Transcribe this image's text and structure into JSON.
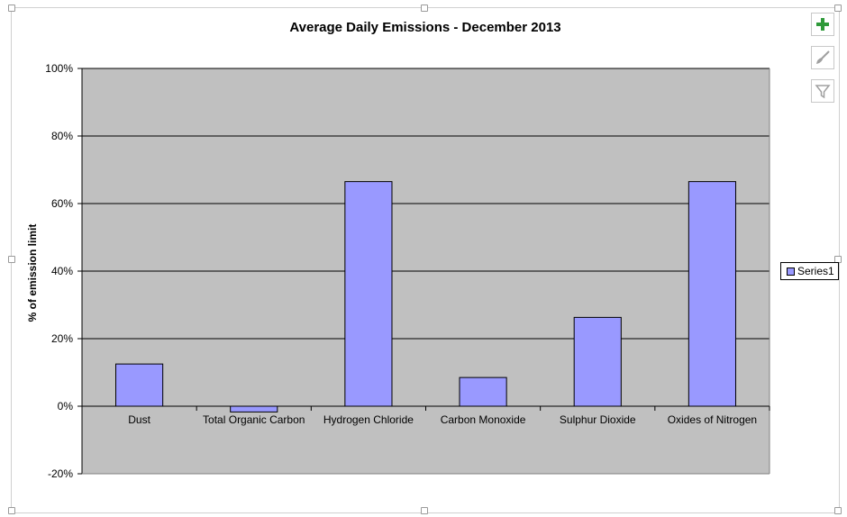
{
  "chart_data": {
    "type": "bar",
    "title": "Average Daily Emissions - December 2013",
    "ylabel": "% of emission limit",
    "xlabel": "",
    "categories": [
      "Dust",
      "Total Organic Carbon",
      "Hydrogen Chloride",
      "Carbon Monoxide",
      "Sulphur Dioxide",
      "Oxides of Nitrogen"
    ],
    "series": [
      {
        "name": "Series1",
        "values": [
          12.5,
          -1.7,
          66.5,
          8.5,
          26.3,
          66.5
        ],
        "color": "#9999ff"
      }
    ],
    "ylim": [
      -20,
      100
    ],
    "yticks": [
      -20,
      0,
      20,
      40,
      60,
      80,
      100
    ],
    "ytick_labels": [
      "-20%",
      "0%",
      "20%",
      "40%",
      "60%",
      "80%",
      "100%"
    ],
    "grid": true,
    "plot_background": "#c0c0c0",
    "legend_position": "right"
  },
  "toolbar": {
    "buttons": [
      {
        "name": "chart-elements",
        "icon": "plus-icon",
        "color": "#2f9a3a"
      },
      {
        "name": "chart-styles",
        "icon": "brush-icon",
        "color": "#9a9a9a"
      },
      {
        "name": "chart-filters",
        "icon": "filter-icon",
        "color": "#9a9a9a"
      }
    ]
  }
}
